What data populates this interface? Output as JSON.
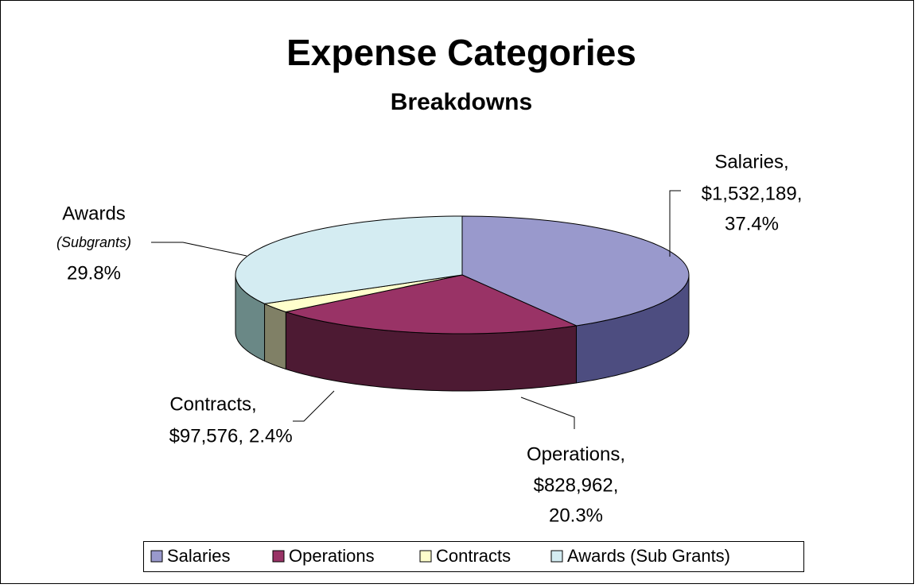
{
  "chart_data": {
    "type": "pie3d",
    "title": "Expense Categories",
    "subtitle": "Breakdowns",
    "categories": [
      "Salaries",
      "Operations",
      "Contracts",
      "Awards (Sub Grants)"
    ],
    "slice_labels": [
      "Salaries,",
      "Operations,",
      "Contracts,",
      "Awards"
    ],
    "amounts": [
      1532189,
      828962,
      97576,
      null
    ],
    "amount_labels": [
      "$1,532,189,",
      "$828,962,",
      "$97,576,",
      null
    ],
    "values": [
      37.4,
      20.3,
      2.4,
      29.8
    ],
    "value_labels": [
      "37.4%",
      "20.3%",
      "2.4%",
      "29.8%"
    ],
    "annotations": [
      {
        "text": "(Subgrants)"
      }
    ],
    "colors": [
      "#9999cc",
      "#993366",
      "#ffffcc",
      "#d4ecf2"
    ],
    "side_colors": [
      "#4d4d80",
      "#4d1a33",
      "#808066",
      "#6a8886"
    ],
    "legend": "bottom"
  }
}
